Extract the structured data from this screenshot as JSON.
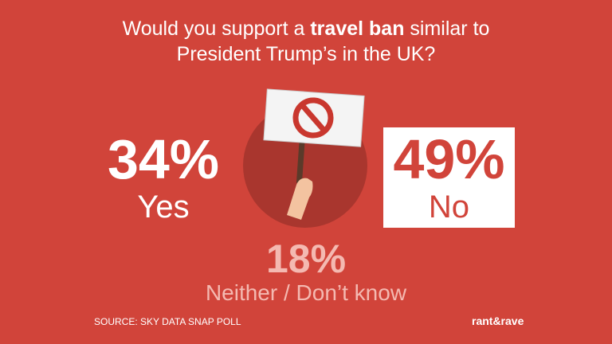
{
  "title": {
    "lines": [
      [
        "Would you support a ",
        "travel ban",
        " similar to"
      ],
      [
        "President Trump’s in the UK?"
      ]
    ]
  },
  "results": [
    {
      "value": "34%",
      "label": "Yes"
    },
    {
      "value": "49%",
      "label": "No"
    },
    {
      "value": "18%",
      "label": "Neither / Don’t know"
    }
  ],
  "source": "SOURCE: SKY DATA SNAP POLL",
  "logo": "rant&rave"
}
